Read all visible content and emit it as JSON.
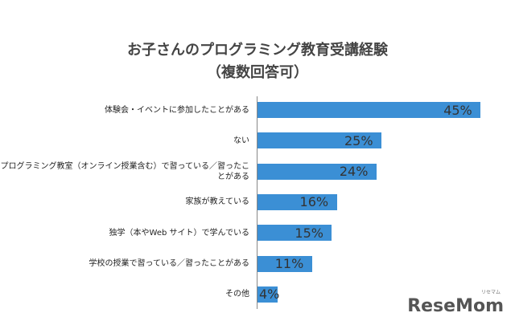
{
  "chart_data": {
    "type": "bar",
    "orientation": "horizontal",
    "title": "お子さんのプログラミング教育受講経験",
    "subtitle": "（複数回答可）",
    "categories": [
      "体験会・イベントに参加したことがある",
      "ない",
      "プログラミング教室（オンライン授業含む）で習っている／習ったことがある",
      "家族が教えている",
      "独学（本やWeb サイト）で学んでいる",
      "学校の授業で習っている／習ったことがある",
      "その他"
    ],
    "values": [
      45,
      25,
      24,
      16,
      15,
      11,
      4
    ],
    "value_labels": [
      "45%",
      "25%",
      "24%",
      "16%",
      "15%",
      "11%",
      "4%"
    ],
    "color": "#3b8fd5"
  },
  "watermark": {
    "text": "ReseMom",
    "small": "リセマム"
  }
}
